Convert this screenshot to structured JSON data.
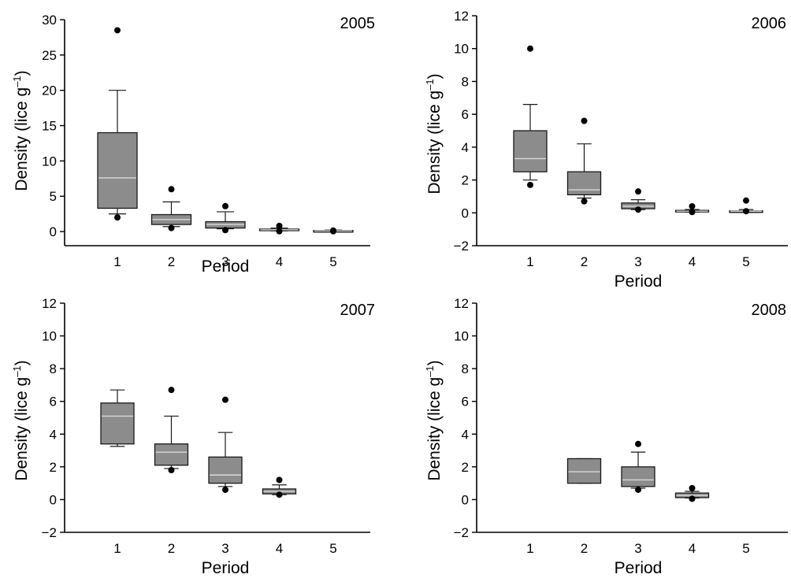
{
  "chart_data": [
    {
      "type": "box",
      "title": "2005",
      "xlabel": "Period",
      "ylabel_main": "Density (lice g",
      "ylabel_sup": "–1",
      "ylabel_close": ")",
      "categories": [
        "1",
        "2",
        "3",
        "4",
        "5"
      ],
      "yticks": [
        "0",
        "5",
        "10",
        "15",
        "20",
        "25",
        "30"
      ],
      "ylim": [
        -2,
        30
      ],
      "boxes": [
        {
          "category": "1",
          "whisker_low": 2.5,
          "q1": 3.3,
          "median": 7.6,
          "q3": 14,
          "whisker_high": 20,
          "outliers": [
            28.5,
            2.0
          ]
        },
        {
          "category": "2",
          "whisker_low": 0.7,
          "q1": 1.0,
          "median": 1.7,
          "q3": 2.4,
          "whisker_high": 4.2,
          "outliers": [
            6.0,
            0.5
          ]
        },
        {
          "category": "3",
          "whisker_low": 0.4,
          "q1": 0.5,
          "median": 1.0,
          "q3": 1.4,
          "whisker_high": 2.8,
          "outliers": [
            3.6,
            0.2
          ]
        },
        {
          "category": "4",
          "whisker_low": 0.1,
          "q1": 0.15,
          "median": 0.25,
          "q3": 0.35,
          "whisker_high": 0.5,
          "outliers": [
            0.8,
            0.05
          ]
        },
        {
          "category": "5",
          "whisker_low": 0.02,
          "q1": 0.05,
          "median": 0.1,
          "q3": 0.15,
          "whisker_high": 0.2,
          "outliers": [
            0.15,
            0.05
          ]
        }
      ]
    },
    {
      "type": "box",
      "title": "2006",
      "xlabel": "Period",
      "ylabel_main": "Density (lice g",
      "ylabel_sup": "–1",
      "ylabel_close": ")",
      "categories": [
        "1",
        "2",
        "3",
        "4",
        "5"
      ],
      "yticks": [
        "−2",
        "0",
        "2",
        "4",
        "6",
        "8",
        "10",
        "12"
      ],
      "ylim": [
        -2,
        12
      ],
      "boxes": [
        {
          "category": "1",
          "whisker_low": 2.0,
          "q1": 2.5,
          "median": 3.3,
          "q3": 5.0,
          "whisker_high": 6.6,
          "outliers": [
            10.0,
            1.7
          ]
        },
        {
          "category": "2",
          "whisker_low": 0.9,
          "q1": 1.1,
          "median": 1.4,
          "q3": 2.5,
          "whisker_high": 4.2,
          "outliers": [
            5.6,
            0.7
          ]
        },
        {
          "category": "3",
          "whisker_low": 0.2,
          "q1": 0.25,
          "median": 0.4,
          "q3": 0.6,
          "whisker_high": 0.8,
          "outliers": [
            1.3,
            0.2
          ]
        },
        {
          "category": "4",
          "whisker_low": 0.05,
          "q1": 0.08,
          "median": 0.1,
          "q3": 0.15,
          "whisker_high": 0.2,
          "outliers": [
            0.4,
            0.05
          ]
        },
        {
          "category": "5",
          "whisker_low": 0.03,
          "q1": 0.06,
          "median": 0.1,
          "q3": 0.12,
          "whisker_high": 0.2,
          "outliers": [
            0.75,
            0.1
          ]
        }
      ]
    },
    {
      "type": "box",
      "title": "2007",
      "xlabel": "Period",
      "ylabel_main": "Density (lice g",
      "ylabel_sup": "–1",
      "ylabel_close": ")",
      "categories": [
        "1",
        "2",
        "3",
        "4",
        "5"
      ],
      "yticks": [
        "−2",
        "0",
        "2",
        "4",
        "6",
        "8",
        "10",
        "12"
      ],
      "ylim": [
        -2,
        12
      ],
      "boxes": [
        {
          "category": "1",
          "whisker_low": 3.25,
          "q1": 3.4,
          "median": 5.1,
          "q3": 5.9,
          "whisker_high": 6.7,
          "outliers": []
        },
        {
          "category": "2",
          "whisker_low": 1.9,
          "q1": 2.1,
          "median": 2.9,
          "q3": 3.4,
          "whisker_high": 5.1,
          "outliers": [
            6.7,
            1.8
          ]
        },
        {
          "category": "3",
          "whisker_low": 0.8,
          "q1": 1.0,
          "median": 1.5,
          "q3": 2.6,
          "whisker_high": 4.1,
          "outliers": [
            6.1,
            0.6
          ]
        },
        {
          "category": "4",
          "whisker_low": 0.3,
          "q1": 0.35,
          "median": 0.5,
          "q3": 0.65,
          "whisker_high": 0.9,
          "outliers": [
            1.2,
            0.3
          ]
        }
      ]
    },
    {
      "type": "box",
      "title": "2008",
      "xlabel": "Period",
      "ylabel_main": "Density (lice g",
      "ylabel_sup": "–1",
      "ylabel_close": ")",
      "categories": [
        "1",
        "2",
        "3",
        "4",
        "5"
      ],
      "yticks": [
        "−2",
        "0",
        "2",
        "4",
        "6",
        "8",
        "10",
        "12"
      ],
      "ylim": [
        -2,
        12
      ],
      "boxes": [
        {
          "category": "2",
          "whisker_low": 1.0,
          "q1": 1.0,
          "median": 1.7,
          "q3": 2.5,
          "whisker_high": 2.5,
          "outliers": []
        },
        {
          "category": "3",
          "whisker_low": 0.7,
          "q1": 0.8,
          "median": 1.2,
          "q3": 2.0,
          "whisker_high": 2.9,
          "outliers": [
            3.4,
            0.6
          ]
        },
        {
          "category": "4",
          "whisker_low": 0.1,
          "q1": 0.12,
          "median": 0.25,
          "q3": 0.4,
          "whisker_high": 0.5,
          "outliers": [
            0.7,
            0.05
          ]
        }
      ]
    }
  ]
}
